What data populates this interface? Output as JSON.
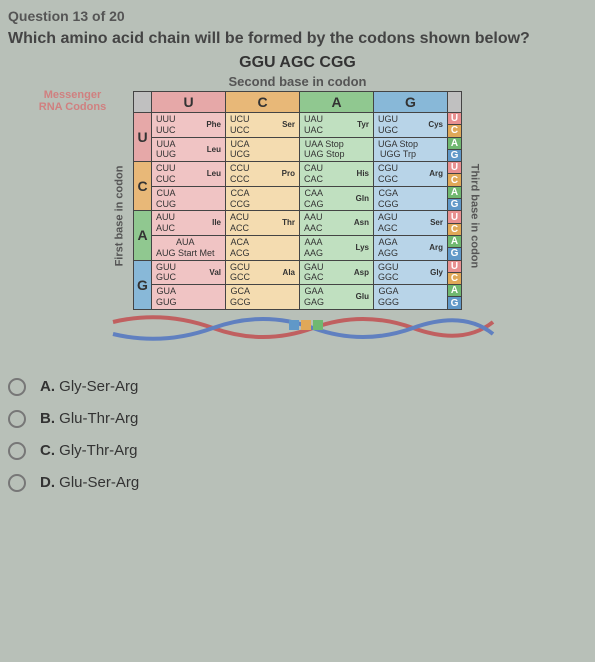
{
  "question_number": "Question 13 of 20",
  "question_text": "Which amino acid chain will be formed by the codons shown below?",
  "codon_sequence": "GGU AGC CGG",
  "second_base_label": "Second base in codon",
  "messenger_label": "Messenger RNA Codons",
  "first_base_label": "First base in codon",
  "third_base_label": "Third base in codon",
  "col_headers": [
    "U",
    "C",
    "A",
    "G"
  ],
  "row_headers": [
    "U",
    "C",
    "A",
    "G"
  ],
  "third_bases": [
    "U",
    "C",
    "A",
    "G"
  ],
  "table": {
    "U": {
      "U": [
        [
          "UUU",
          "UUC",
          "Phe"
        ],
        [
          "UUA",
          "UUG",
          "Leu"
        ]
      ],
      "C": [
        [
          "UCU",
          "UCC",
          "Ser"
        ],
        [
          "UCA",
          "UCG",
          ""
        ]
      ],
      "A": [
        [
          "UAU",
          "UAC",
          "Tyr"
        ],
        [
          "UAA Stop",
          "UAG Stop",
          ""
        ]
      ],
      "G": [
        [
          "UGU",
          "UGC",
          "Cys"
        ],
        [
          "UGA Stop",
          "UGG Trp",
          ""
        ]
      ]
    },
    "C": {
      "U": [
        [
          "CUU",
          "CUC",
          "Leu"
        ],
        [
          "CUA",
          "CUG",
          ""
        ]
      ],
      "C": [
        [
          "CCU",
          "CCC",
          "Pro"
        ],
        [
          "CCA",
          "CCG",
          ""
        ]
      ],
      "A": [
        [
          "CAU",
          "CAC",
          "His"
        ],
        [
          "CAA",
          "CAG",
          "Gln"
        ]
      ],
      "G": [
        [
          "CGU",
          "CGC",
          "Arg"
        ],
        [
          "CGA",
          "CGG",
          ""
        ]
      ]
    },
    "A": {
      "U": [
        [
          "AUU",
          "AUC",
          "Ile"
        ],
        [
          "AUA",
          "AUG Start Met",
          ""
        ]
      ],
      "C": [
        [
          "ACU",
          "ACC",
          "Thr"
        ],
        [
          "ACA",
          "ACG",
          ""
        ]
      ],
      "A": [
        [
          "AAU",
          "AAC",
          "Asn"
        ],
        [
          "AAA",
          "AAG",
          "Lys"
        ]
      ],
      "G": [
        [
          "AGU",
          "AGC",
          "Ser"
        ],
        [
          "AGA",
          "AGG",
          "Arg"
        ]
      ]
    },
    "G": {
      "U": [
        [
          "GUU",
          "GUC",
          "Val"
        ],
        [
          "GUA",
          "GUG",
          ""
        ]
      ],
      "C": [
        [
          "GCU",
          "GCC",
          "Ala"
        ],
        [
          "GCA",
          "GCG",
          ""
        ]
      ],
      "A": [
        [
          "GAU",
          "GAC",
          "Asp"
        ],
        [
          "GAA",
          "GAG",
          "Glu"
        ]
      ],
      "G": [
        [
          "GGU",
          "GGC",
          "Gly"
        ],
        [
          "GGA",
          "GGG",
          ""
        ]
      ]
    }
  },
  "options": {
    "A": "Gly-Ser-Arg",
    "B": "Glu-Thr-Arg",
    "C": "Gly-Thr-Arg",
    "D": "Glu-Ser-Arg"
  },
  "colors": {
    "header_bg": {
      "U": "#e6a8a8",
      "C": "#e8b878",
      "A": "#90c890",
      "G": "#88b8d8"
    }
  }
}
